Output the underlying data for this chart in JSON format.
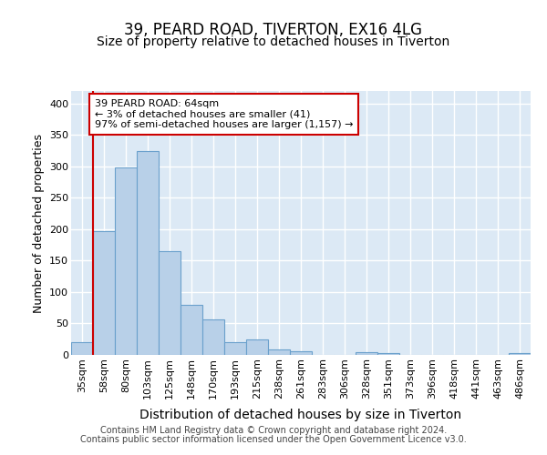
{
  "title_line1": "39, PEARD ROAD, TIVERTON, EX16 4LG",
  "title_line2": "Size of property relative to detached houses in Tiverton",
  "xlabel": "Distribution of detached houses by size in Tiverton",
  "ylabel": "Number of detached properties",
  "categories": [
    "35sqm",
    "58sqm",
    "80sqm",
    "103sqm",
    "125sqm",
    "148sqm",
    "170sqm",
    "193sqm",
    "215sqm",
    "238sqm",
    "261sqm",
    "283sqm",
    "306sqm",
    "328sqm",
    "351sqm",
    "373sqm",
    "396sqm",
    "418sqm",
    "441sqm",
    "463sqm",
    "486sqm"
  ],
  "values": [
    20,
    197,
    298,
    325,
    165,
    80,
    57,
    21,
    25,
    8,
    6,
    0,
    0,
    5,
    3,
    0,
    0,
    0,
    0,
    0,
    3
  ],
  "bar_color": "#b8d0e8",
  "bar_edge_color": "#6aa0cc",
  "vline_color": "#cc0000",
  "vline_x": 0.5,
  "annotation_text": "39 PEARD ROAD: 64sqm\n← 3% of detached houses are smaller (41)\n97% of semi-detached houses are larger (1,157) →",
  "annotation_box_facecolor": "#ffffff",
  "annotation_box_edgecolor": "#cc0000",
  "ylim": [
    0,
    420
  ],
  "yticks": [
    0,
    50,
    100,
    150,
    200,
    250,
    300,
    350,
    400
  ],
  "footer_line1": "Contains HM Land Registry data © Crown copyright and database right 2024.",
  "footer_line2": "Contains public sector information licensed under the Open Government Licence v3.0.",
  "fig_bg_color": "#ffffff",
  "plot_bg_color": "#dce9f5",
  "grid_color": "#ffffff",
  "title_fontsize": 12,
  "subtitle_fontsize": 10,
  "ylabel_fontsize": 9,
  "xlabel_fontsize": 10,
  "tick_fontsize": 8,
  "annot_fontsize": 8,
  "footer_fontsize": 7
}
